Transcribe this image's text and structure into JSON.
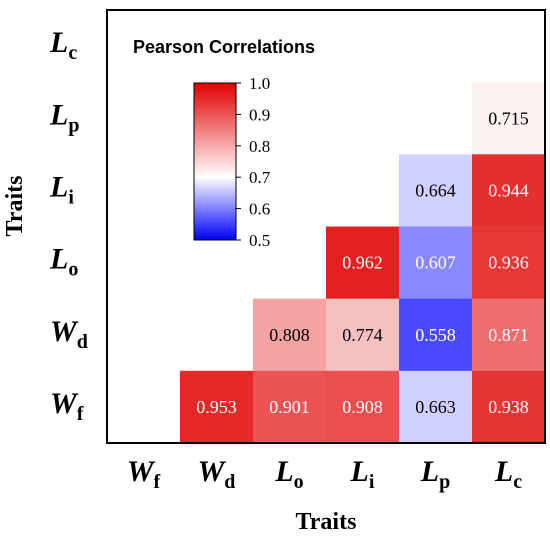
{
  "chart_data": {
    "type": "heatmap",
    "title": "Pearson Correlations",
    "xlabel": "Traits",
    "ylabel": "Traits",
    "x_categories": [
      {
        "main": "W",
        "sub": "f"
      },
      {
        "main": "W",
        "sub": "d"
      },
      {
        "main": "L",
        "sub": "o"
      },
      {
        "main": "L",
        "sub": "i"
      },
      {
        "main": "L",
        "sub": "p"
      },
      {
        "main": "L",
        "sub": "c"
      }
    ],
    "y_categories": [
      {
        "main": "L",
        "sub": "c"
      },
      {
        "main": "L",
        "sub": "p"
      },
      {
        "main": "L",
        "sub": "i"
      },
      {
        "main": "L",
        "sub": "o"
      },
      {
        "main": "W",
        "sub": "d"
      },
      {
        "main": "W",
        "sub": "f"
      }
    ],
    "cells": [
      {
        "row": 1,
        "col": 5,
        "value": 0.715,
        "label": "0.715"
      },
      {
        "row": 2,
        "col": 4,
        "value": 0.664,
        "label": "0.664"
      },
      {
        "row": 2,
        "col": 5,
        "value": 0.944,
        "label": "0.944"
      },
      {
        "row": 3,
        "col": 3,
        "value": 0.962,
        "label": "0.962"
      },
      {
        "row": 3,
        "col": 4,
        "value": 0.607,
        "label": "0.607"
      },
      {
        "row": 3,
        "col": 5,
        "value": 0.936,
        "label": "0.936"
      },
      {
        "row": 4,
        "col": 2,
        "value": 0.808,
        "label": "0.808"
      },
      {
        "row": 4,
        "col": 3,
        "value": 0.774,
        "label": "0.774"
      },
      {
        "row": 4,
        "col": 4,
        "value": 0.558,
        "label": "0.558"
      },
      {
        "row": 4,
        "col": 5,
        "value": 0.871,
        "label": "0.871"
      },
      {
        "row": 5,
        "col": 1,
        "value": 0.953,
        "label": "0.953"
      },
      {
        "row": 5,
        "col": 2,
        "value": 0.901,
        "label": "0.901"
      },
      {
        "row": 5,
        "col": 3,
        "value": 0.908,
        "label": "0.908"
      },
      {
        "row": 5,
        "col": 4,
        "value": 0.663,
        "label": "0.663"
      },
      {
        "row": 5,
        "col": 5,
        "value": 0.938,
        "label": "0.938"
      }
    ],
    "colorbar": {
      "min": 0.5,
      "max": 1.0,
      "ticks": [
        "1.0",
        "0.9",
        "0.8",
        "0.7",
        "0.6",
        "0.5"
      ],
      "colors": [
        "#0000ff",
        "#ffffff",
        "#ff0000"
      ]
    },
    "grid": false,
    "legend": "top-left"
  }
}
